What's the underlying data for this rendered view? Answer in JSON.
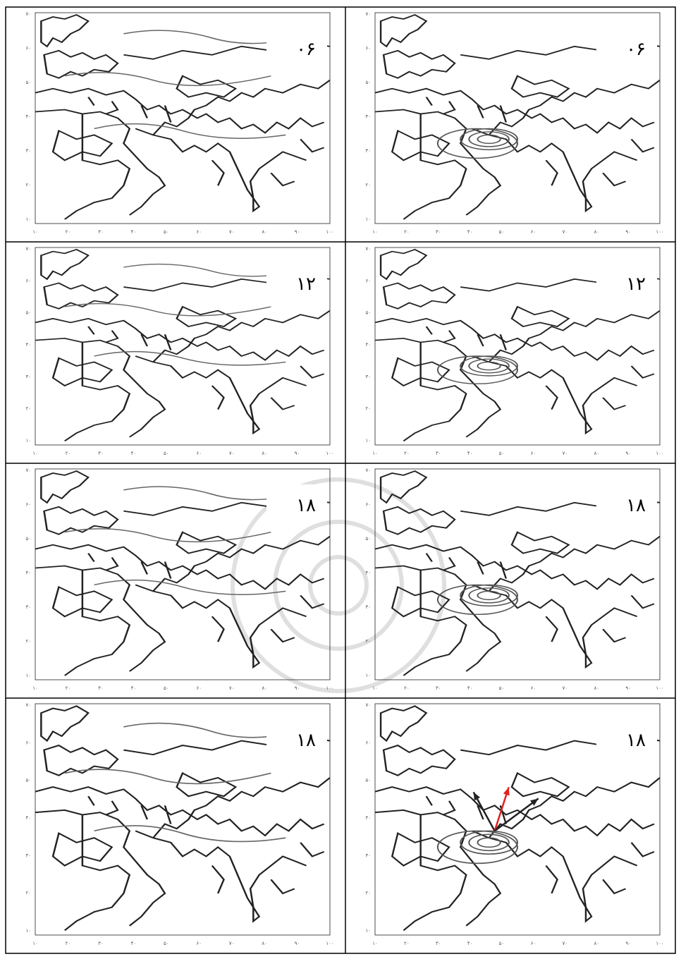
{
  "panels": [
    {
      "label": "۰۶"
    },
    {
      "label": "۰۶"
    },
    {
      "label": "۱۲"
    },
    {
      "label": "۱۲"
    },
    {
      "label": "۱۸"
    },
    {
      "label": "۱۸"
    },
    {
      "label": "۱۸"
    },
    {
      "label": "۱۸"
    }
  ],
  "axes": {
    "x": [
      "۱۰",
      "۲۰",
      "۳۰",
      "۴۰",
      "۵۰",
      "۶۰",
      "۷۰",
      "۸۰",
      "۹۰",
      "۱۰۰"
    ],
    "y": [
      "۷۰",
      "۶۰",
      "۵۰",
      "۴۰",
      "۳۰",
      "۲۰",
      "۱۰"
    ]
  }
}
